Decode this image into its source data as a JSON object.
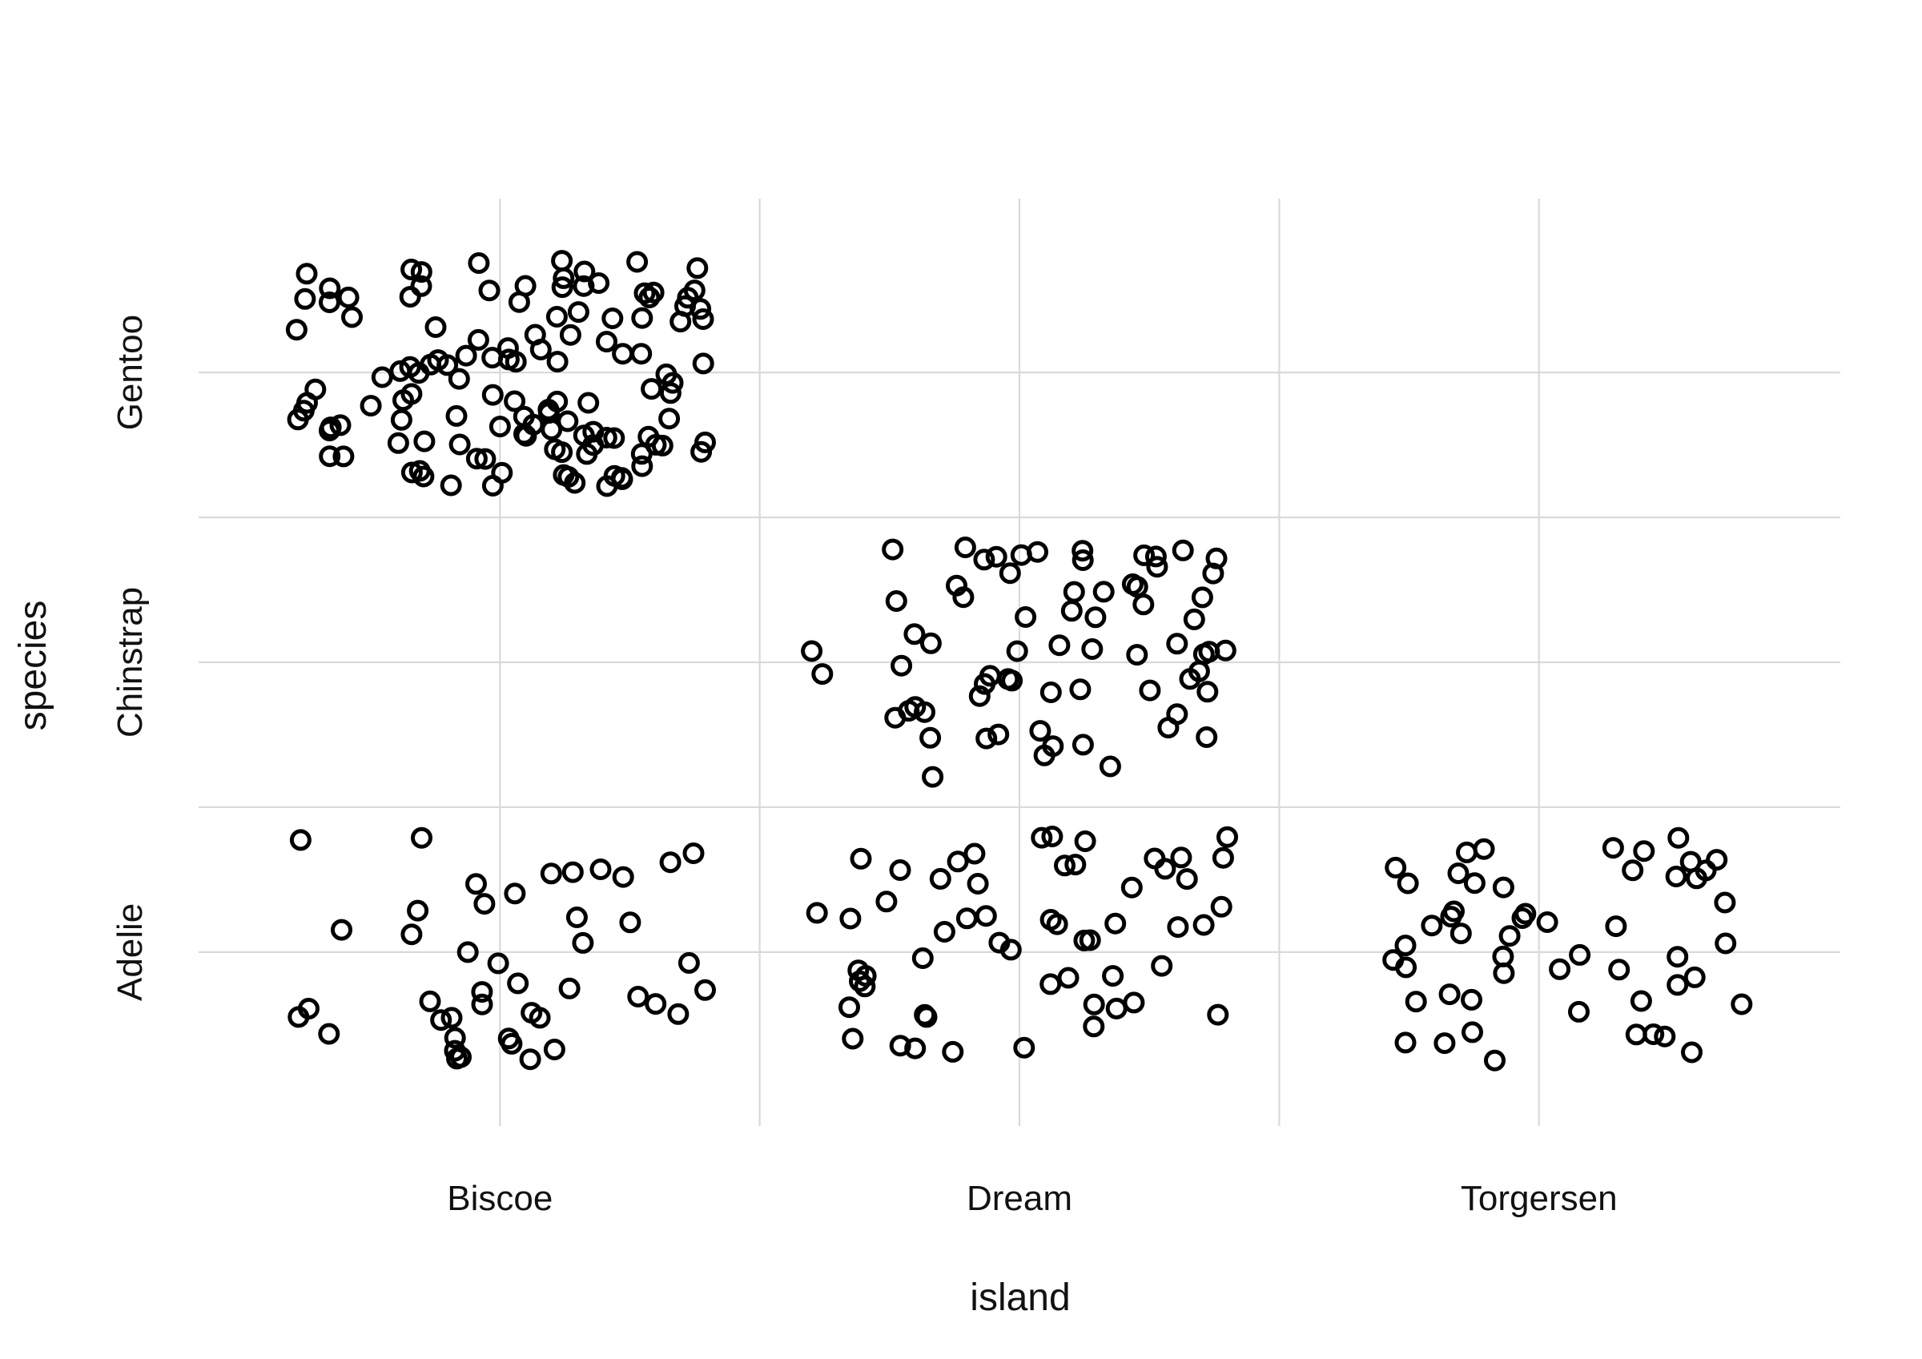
{
  "chart_data": {
    "type": "scatter",
    "geom": "jitter",
    "title": "",
    "xlabel": "island",
    "ylabel": "species",
    "x_categories": [
      "Biscoe",
      "Dream",
      "Torgersen"
    ],
    "y_categories": [
      "Adelie",
      "Chinstrap",
      "Gentoo"
    ],
    "grid": true,
    "point_shape": "open-circle",
    "point_color": "#000000",
    "groups": [
      {
        "island": "Biscoe",
        "species": "Adelie",
        "count": 44
      },
      {
        "island": "Dream",
        "species": "Adelie",
        "count": 56
      },
      {
        "island": "Torgersen",
        "species": "Adelie",
        "count": 52
      },
      {
        "island": "Dream",
        "species": "Chinstrap",
        "count": 68
      },
      {
        "island": "Biscoe",
        "species": "Gentoo",
        "count": 124
      }
    ]
  }
}
